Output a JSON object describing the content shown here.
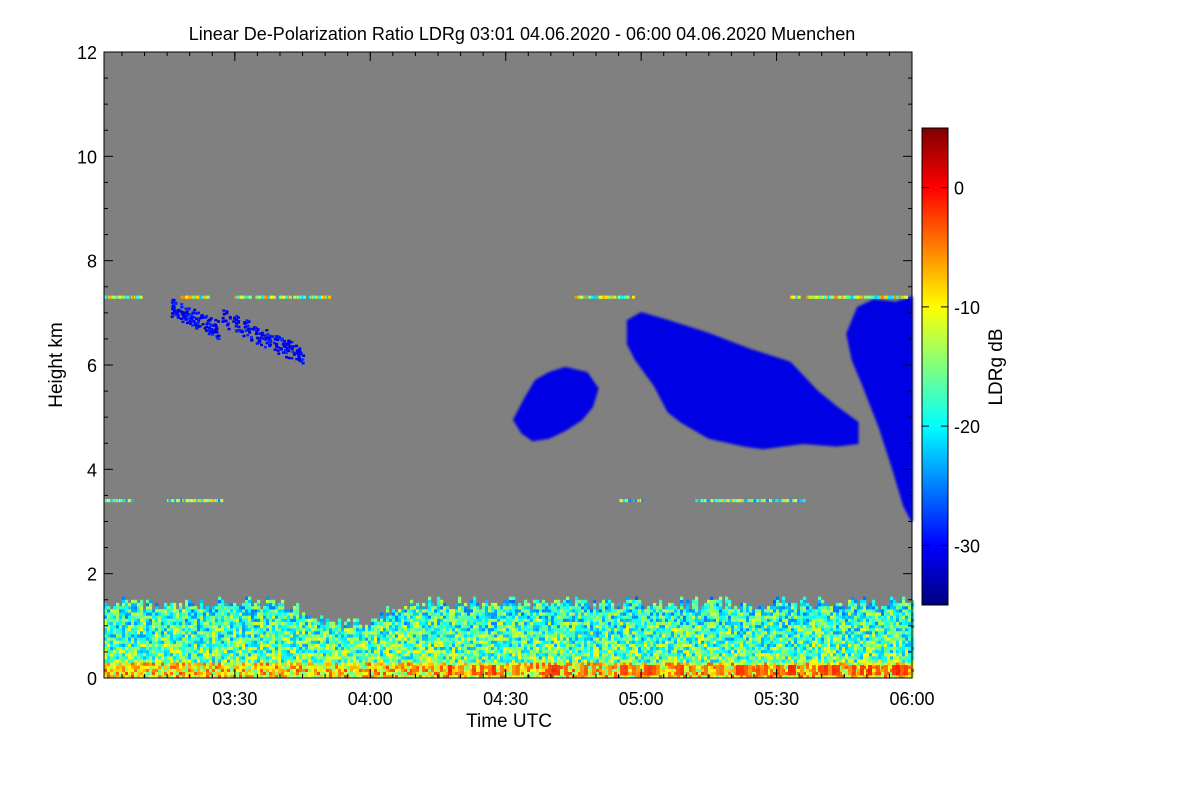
{
  "chart_data": {
    "type": "heatmap",
    "title": "Linear De-Polarization Ratio LDRg   03:01 04.06.2020 - 06:00 04.06.2020 Muenchen",
    "xlabel": "Time UTC",
    "ylabel": "Height km",
    "x_range_hours": [
      3.017,
      6.0
    ],
    "y_range_km": [
      0,
      12
    ],
    "x_ticks": [
      {
        "label": "03:30",
        "value": 3.5
      },
      {
        "label": "04:00",
        "value": 4.0
      },
      {
        "label": "04:30",
        "value": 4.5
      },
      {
        "label": "05:00",
        "value": 5.0
      },
      {
        "label": "05:30",
        "value": 5.5
      },
      {
        "label": "06:00",
        "value": 6.0
      }
    ],
    "y_ticks": [
      {
        "label": "0",
        "value": 0
      },
      {
        "label": "2",
        "value": 2
      },
      {
        "label": "4",
        "value": 4
      },
      {
        "label": "6",
        "value": 6
      },
      {
        "label": "8",
        "value": 8
      },
      {
        "label": "10",
        "value": 10
      },
      {
        "label": "12",
        "value": 12
      }
    ],
    "colorbar": {
      "label": "LDRg dB",
      "range": [
        -35,
        5
      ],
      "ticks": [
        {
          "label": "0",
          "value": 0
        },
        {
          "label": "-10",
          "value": -10
        },
        {
          "label": "-20",
          "value": -20
        },
        {
          "label": "-30",
          "value": -30
        }
      ],
      "colors": [
        "#00007f",
        "#0000ff",
        "#007fff",
        "#00ffff",
        "#7fff7f",
        "#ffff00",
        "#ff7f00",
        "#ff0000",
        "#7f0000"
      ]
    },
    "background_color": "#808080",
    "features": [
      {
        "name": "boundary-layer",
        "t_start": 3.017,
        "t_end": 6.0,
        "h_bottom": 0.0,
        "h_top": 1.4,
        "ldr_db": -15
      },
      {
        "name": "boundary-layer-base",
        "t_start": 3.017,
        "t_end": 6.0,
        "h_bottom": 0.05,
        "h_top": 0.25,
        "ldr_db": -3
      },
      {
        "name": "cloud-a",
        "t_center": 4.72,
        "h_center": 5.2,
        "ldr_db": -31
      },
      {
        "name": "cloud-b",
        "t_start": 4.95,
        "t_end": 5.8,
        "h_bottom": 4.3,
        "h_top": 7.0,
        "ldr_db": -31
      },
      {
        "name": "cloud-c",
        "t_start": 5.75,
        "t_end": 6.0,
        "h_bottom": 2.9,
        "h_top": 7.3,
        "ldr_db": -31
      },
      {
        "name": "cirrus-streak-1",
        "t_center": 3.35,
        "h_center": 6.9,
        "ldr_db": -30
      },
      {
        "name": "cirrus-streak-2",
        "t_center": 3.6,
        "h_center": 6.5,
        "ldr_db": -30
      },
      {
        "name": "thin-layer-7km",
        "t_start": 3.017,
        "t_end": 6.0,
        "h_center": 7.3,
        "ldr_db": -14
      },
      {
        "name": "thin-layer-3.4km",
        "t_start": 3.017,
        "t_end": 5.6,
        "h_center": 3.4,
        "ldr_db": -16
      }
    ]
  }
}
